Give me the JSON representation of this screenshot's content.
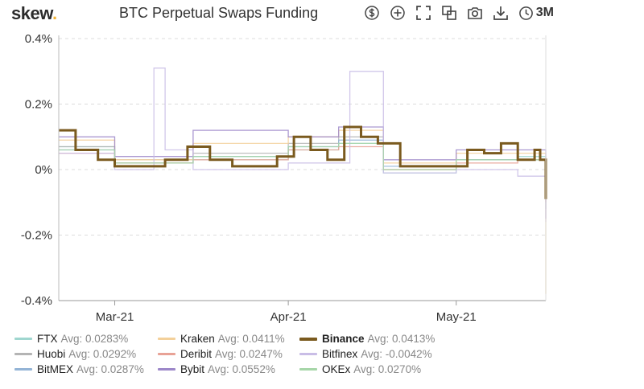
{
  "brand": {
    "name": "skew",
    "dot": "."
  },
  "header": {
    "title": "BTC Perpetual Swaps Funding"
  },
  "toolbar": {
    "icons": [
      "dollar-icon",
      "add-icon",
      "fullscreen-icon",
      "copy-icon",
      "camera-icon",
      "download-icon",
      "clock-icon"
    ],
    "range_label": "3M"
  },
  "chart_data": {
    "type": "line",
    "title": "BTC Perpetual Swaps Funding",
    "xlabel": "",
    "ylabel": "",
    "x_range": [
      "2021-02-19",
      "2021-05-17"
    ],
    "x_ticks": [
      {
        "date": "2021-03-01",
        "label": "Mar-21"
      },
      {
        "date": "2021-04-01",
        "label": "Apr-21"
      },
      {
        "date": "2021-05-01",
        "label": "May-21"
      }
    ],
    "y_range": [
      -0.4,
      0.4
    ],
    "y_ticks": [
      {
        "value": 0.4,
        "label": "0.4%"
      },
      {
        "value": 0.2,
        "label": "0.2%"
      },
      {
        "value": 0,
        "label": "0%"
      },
      {
        "value": -0.2,
        "label": "-0.2%"
      },
      {
        "value": -0.4,
        "label": "-0.4%"
      }
    ],
    "grid": true,
    "legend_position": "bottom",
    "series": [
      {
        "name": "FTX",
        "avg_label": "Avg: 0.0283%",
        "color": "#9fd6cf",
        "dates": [
          "2021-02-19",
          "2021-03-01",
          "2021-03-15",
          "2021-04-01",
          "2021-04-10",
          "2021-04-18",
          "2021-05-01",
          "2021-05-12",
          "2021-05-17"
        ],
        "values": [
          0.07,
          0.02,
          0.03,
          0.06,
          0.08,
          -0.01,
          0.03,
          0.04,
          -0.12
        ]
      },
      {
        "name": "Huobi",
        "avg_label": "Avg: 0.0292%",
        "color": "#b4b4b4",
        "dates": [
          "2021-02-19",
          "2021-03-01",
          "2021-03-15",
          "2021-04-01",
          "2021-04-10",
          "2021-04-18",
          "2021-05-01",
          "2021-05-12",
          "2021-05-17"
        ],
        "values": [
          0.07,
          0.03,
          0.05,
          0.08,
          0.1,
          0.0,
          0.03,
          0.03,
          -0.05
        ]
      },
      {
        "name": "BitMEX",
        "avg_label": "Avg: 0.0287%",
        "color": "#93b4d6",
        "dates": [
          "2021-02-19",
          "2021-03-01",
          "2021-03-15",
          "2021-04-01",
          "2021-04-10",
          "2021-04-18",
          "2021-05-01",
          "2021-05-12",
          "2021-05-17"
        ],
        "values": [
          0.06,
          0.02,
          0.04,
          0.07,
          0.09,
          0.01,
          0.03,
          0.03,
          -0.08
        ]
      },
      {
        "name": "Kraken",
        "avg_label": "Avg: 0.0411%",
        "color": "#f3d09a",
        "dates": [
          "2021-02-19",
          "2021-03-01",
          "2021-03-15",
          "2021-04-01",
          "2021-04-10",
          "2021-04-18",
          "2021-05-01",
          "2021-05-12",
          "2021-05-17"
        ],
        "values": [
          0.09,
          0.03,
          0.08,
          0.1,
          0.12,
          0.02,
          0.05,
          0.05,
          -0.38
        ]
      },
      {
        "name": "Deribit",
        "avg_label": "Avg: 0.0247%",
        "color": "#e8a296",
        "dates": [
          "2021-02-19",
          "2021-03-01",
          "2021-03-15",
          "2021-04-01",
          "2021-04-10",
          "2021-04-18",
          "2021-05-01",
          "2021-05-12",
          "2021-05-17"
        ],
        "values": [
          0.05,
          0.02,
          0.03,
          0.06,
          0.07,
          0.0,
          0.02,
          0.03,
          -0.1
        ]
      },
      {
        "name": "Bybit",
        "avg_label": "Avg: 0.0552%",
        "color": "#9c87c9",
        "dates": [
          "2021-02-19",
          "2021-03-01",
          "2021-03-15",
          "2021-04-01",
          "2021-04-10",
          "2021-04-18",
          "2021-05-01",
          "2021-05-12",
          "2021-05-17"
        ],
        "values": [
          0.1,
          0.04,
          0.12,
          0.1,
          0.13,
          0.03,
          0.06,
          0.06,
          -0.15
        ]
      },
      {
        "name": "Binance",
        "avg_label": "Avg: 0.0413%",
        "color": "#7a5a1e",
        "dates": [
          "2021-02-19",
          "2021-02-22",
          "2021-02-26",
          "2021-03-01",
          "2021-03-05",
          "2021-03-10",
          "2021-03-14",
          "2021-03-18",
          "2021-03-22",
          "2021-03-26",
          "2021-03-30",
          "2021-04-02",
          "2021-04-05",
          "2021-04-08",
          "2021-04-11",
          "2021-04-14",
          "2021-04-17",
          "2021-04-21",
          "2021-04-25",
          "2021-04-29",
          "2021-05-03",
          "2021-05-06",
          "2021-05-09",
          "2021-05-12",
          "2021-05-15",
          "2021-05-16",
          "2021-05-17"
        ],
        "values": [
          0.12,
          0.06,
          0.03,
          0.01,
          0.01,
          0.03,
          0.07,
          0.03,
          0.01,
          0.01,
          0.04,
          0.1,
          0.06,
          0.03,
          0.13,
          0.1,
          0.08,
          0.01,
          0.01,
          0.01,
          0.06,
          0.05,
          0.08,
          0.03,
          0.06,
          0.03,
          -0.09
        ]
      },
      {
        "name": "Bitfinex",
        "avg_label": "Avg: -0.0042%",
        "color": "#c9bde6",
        "dates": [
          "2021-02-19",
          "2021-03-01",
          "2021-03-08",
          "2021-03-10",
          "2021-03-15",
          "2021-04-01",
          "2021-04-12",
          "2021-04-18",
          "2021-05-01",
          "2021-05-12",
          "2021-05-17"
        ],
        "values": [
          0.05,
          0.0,
          0.31,
          0.06,
          0.0,
          0.02,
          0.3,
          -0.01,
          0.0,
          -0.02,
          -0.16
        ]
      },
      {
        "name": "OKEx",
        "avg_label": "Avg: 0.0270%",
        "color": "#a6d6a8",
        "dates": [
          "2021-02-19",
          "2021-03-01",
          "2021-03-15",
          "2021-04-01",
          "2021-04-10",
          "2021-04-18",
          "2021-05-01",
          "2021-05-12",
          "2021-05-17"
        ],
        "values": [
          0.06,
          0.02,
          0.04,
          0.07,
          0.08,
          0.0,
          0.03,
          0.03,
          -0.07
        ]
      }
    ]
  }
}
